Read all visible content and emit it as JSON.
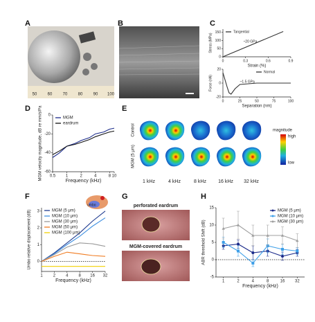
{
  "panel_labels": [
    "A",
    "B",
    "C",
    "D",
    "E",
    "F",
    "G",
    "H"
  ],
  "panel_a": {
    "ruler_labels": [
      "50",
      "60",
      "70",
      "80",
      "90",
      "100"
    ]
  },
  "panel_e": {
    "row_labels": [
      "Control",
      "MGM (5 μm)"
    ],
    "col_labels": [
      "1 kHz",
      "4 kHz",
      "8 kHz",
      "16 kHz",
      "32 kHz"
    ],
    "colorbar_title": "magnitude",
    "colorbar_high": "high",
    "colorbar_low": "low"
  },
  "panel_g": {
    "top_label": "perforated eardrum",
    "bottom_label": "MGM-covered eardrum"
  },
  "chart_data": [
    {
      "type": "line",
      "xlabel": "Strain (%)",
      "ylabel": "Stress (MPa)",
      "x": [
        0,
        0.8
      ],
      "xlim": [
        0,
        0.9
      ],
      "ylim": [
        0,
        170
      ],
      "xticks": [
        0,
        0.3,
        0.6,
        0.9
      ],
      "yticks": [
        0,
        50,
        100,
        150
      ],
      "legend": "upper-left",
      "annotations": [
        "~20 GPa"
      ],
      "series": [
        {
          "name": "Tangential",
          "color": "#333333",
          "values": [
            0,
            155
          ]
        }
      ]
    },
    {
      "type": "line",
      "xlabel": "Separation (nm)",
      "ylabel": "Force (nN)",
      "x": [
        0,
        3,
        6,
        9,
        12,
        18,
        25,
        50,
        75,
        100
      ],
      "xlim": [
        0,
        100
      ],
      "ylim": [
        -20,
        20
      ],
      "xticks": [
        0,
        25,
        50,
        75,
        100
      ],
      "yticks": [
        -20,
        0,
        20
      ],
      "legend": "upper-right",
      "annotations": [
        "~1.5 GPa"
      ],
      "series": [
        {
          "name": "Normal",
          "color": "#333333",
          "values": [
            15,
            5,
            -5,
            -14,
            -16,
            -8,
            -2,
            0,
            0,
            0
          ]
        }
      ]
    },
    {
      "type": "line",
      "xlabel": "Frequency (kHz)",
      "ylabel": "MGM velocity magnitude, dB re mm/s/Pa",
      "xscale": "log",
      "x": [
        0.5,
        0.7,
        1,
        1.5,
        2,
        3,
        4,
        6,
        8,
        10
      ],
      "xlim": [
        0.5,
        10
      ],
      "ylim": [
        -60,
        0
      ],
      "xticks": [
        0.5,
        1,
        2,
        4,
        8,
        10
      ],
      "yticks": [
        -60,
        -40,
        -20,
        0
      ],
      "legend": "upper-left",
      "series": [
        {
          "name": "MGM",
          "color": "#1a2a8a",
          "values": [
            -45,
            -40,
            -33,
            -30,
            -27,
            -24,
            -20,
            -18,
            -15,
            -14
          ]
        },
        {
          "name": "eardrum",
          "color": "#111111",
          "values": [
            -42,
            -38,
            -33,
            -31,
            -29,
            -26,
            -23,
            -20,
            -18,
            -17
          ]
        }
      ]
    },
    {
      "type": "line",
      "xlabel": "Frequency (kHz)",
      "ylabel": "Umbo relative displacement (dB)",
      "xscale": "log",
      "x": [
        1,
        2,
        4,
        8,
        16,
        32
      ],
      "xlim": [
        1,
        32
      ],
      "ylim": [
        -0.6,
        3.2
      ],
      "xticks": [
        1,
        2,
        4,
        8,
        16,
        32
      ],
      "yticks": [
        0,
        1,
        2,
        3
      ],
      "legend": "upper-left",
      "zero_line": true,
      "inset_label": "umbo",
      "series": [
        {
          "name": "MGM (5 μm)",
          "color": "#1f3b8f",
          "values": [
            0,
            0.5,
            1.1,
            1.7,
            2.4,
            3.0
          ]
        },
        {
          "name": "MGM (10 μm)",
          "color": "#3f8fe0",
          "values": [
            0,
            0.45,
            1.0,
            1.5,
            2.1,
            2.6
          ]
        },
        {
          "name": "MGM (30 μm)",
          "color": "#999999",
          "values": [
            0,
            0.4,
            0.85,
            1.1,
            1.05,
            0.9
          ]
        },
        {
          "name": "MGM (50 μm)",
          "color": "#f07b20",
          "values": [
            0,
            0.3,
            0.55,
            0.45,
            0.35,
            0.3
          ]
        },
        {
          "name": "MGM (100 μm)",
          "color": "#f2d100",
          "values": [
            -0.3,
            -0.3,
            -0.3,
            -0.3,
            -0.3,
            -0.3
          ]
        }
      ]
    },
    {
      "type": "line",
      "xlabel": "Frequency (kHz)",
      "ylabel": "ABR threshold Shift (dB)",
      "categories": [
        "1",
        "2",
        "4",
        "8",
        "16",
        "32"
      ],
      "ylim": [
        -5,
        15
      ],
      "yticks": [
        -5,
        0,
        5,
        10,
        15
      ],
      "legend": "upper-right",
      "zero_line": true,
      "series": [
        {
          "name": "MGM (5 μm)",
          "color": "#1a2a8a",
          "marker": "circle",
          "values": [
            4,
            4.5,
            2,
            2.5,
            1,
            2
          ],
          "errors": [
            1,
            1.2,
            2,
            1.5,
            1.2,
            1
          ]
        },
        {
          "name": "MGM (10 μm)",
          "color": "#3fa0e8",
          "marker": "square",
          "values": [
            5,
            2.5,
            -1,
            4,
            3,
            2.5
          ],
          "errors": [
            1.5,
            1.5,
            1,
            2,
            1.5,
            1
          ]
        },
        {
          "name": "MGM (30 μm)",
          "color": "#a0a0a0",
          "marker": "triangle",
          "values": [
            9,
            10,
            7,
            7,
            7,
            5.5
          ],
          "errors": [
            3,
            4,
            3,
            3,
            2.5,
            2
          ]
        }
      ]
    }
  ]
}
